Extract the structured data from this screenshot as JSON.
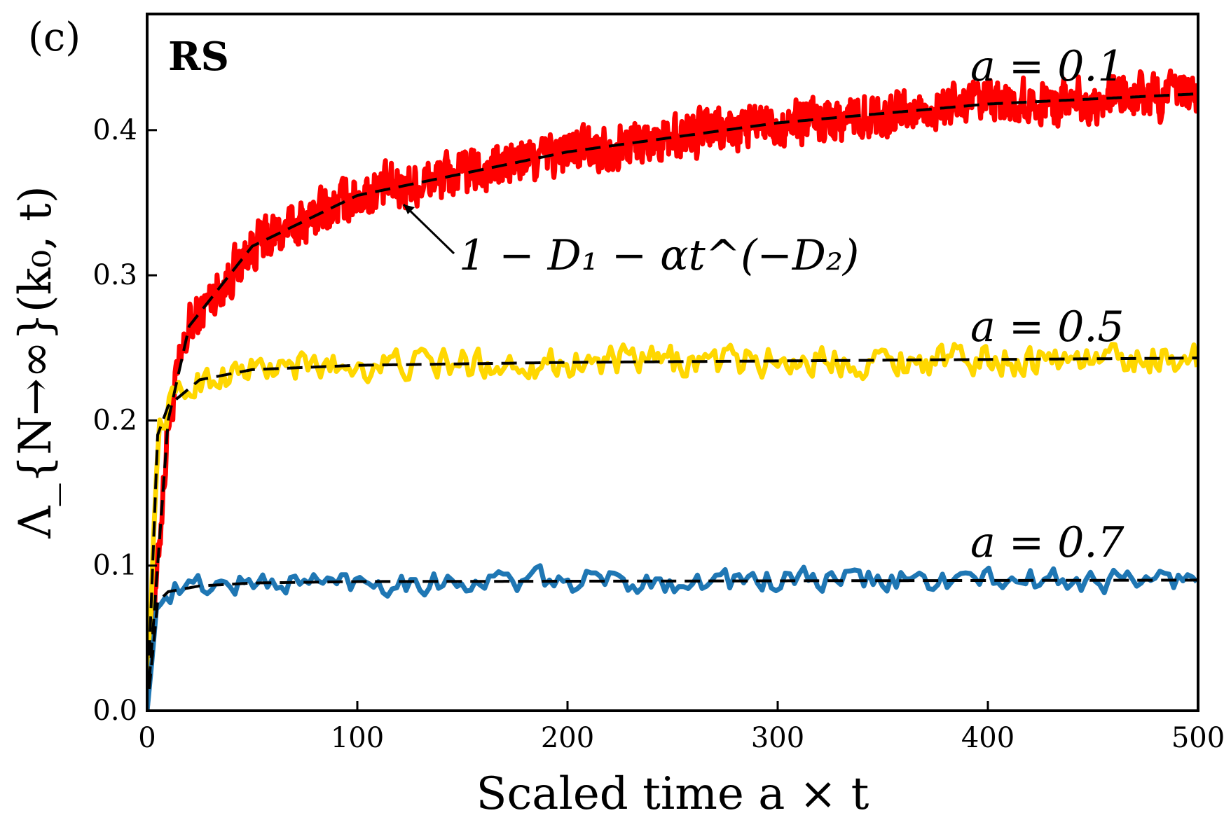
{
  "chart_data": {
    "type": "line",
    "panel_label": "(c)",
    "title": "RS",
    "xlabel": "Scaled time a × t",
    "ylabel": "Λ_{N→∞}(k₀, t)",
    "xlim": [
      0,
      500
    ],
    "ylim": [
      0.0,
      0.48
    ],
    "xticks": [
      0,
      100,
      200,
      300,
      400,
      500
    ],
    "xtick_labels": [
      "0",
      "100",
      "200",
      "300",
      "400",
      "500"
    ],
    "yticks": [
      0.0,
      0.1,
      0.2,
      0.3,
      0.4
    ],
    "ytick_labels": [
      "0.0",
      "0.1",
      "0.2",
      "0.3",
      "0.4"
    ],
    "grid": false,
    "series": [
      {
        "name": "a = 0.1",
        "label": "a = 0.1",
        "color": "#ff0000",
        "noise_amplitude": 0.022,
        "noise_step": 0.35,
        "fit": {
          "form": "power",
          "D1": 0.5,
          "alpha": 0.34,
          "D2": 0.4,
          "t0": 0
        },
        "anchor_points": [
          [
            0,
            0.0
          ],
          [
            10,
            0.2
          ],
          [
            20,
            0.265
          ],
          [
            50,
            0.32
          ],
          [
            100,
            0.355
          ],
          [
            200,
            0.385
          ],
          [
            300,
            0.405
          ],
          [
            400,
            0.418
          ],
          [
            500,
            0.425
          ]
        ]
      },
      {
        "name": "a = 0.5",
        "label": "a = 0.5",
        "color": "#ffd700",
        "noise_amplitude": 0.015,
        "noise_step": 1.5,
        "fit": {
          "form": "saturating",
          "plateau": 0.243
        },
        "anchor_points": [
          [
            0,
            0.0
          ],
          [
            5,
            0.19
          ],
          [
            10,
            0.21
          ],
          [
            25,
            0.228
          ],
          [
            50,
            0.235
          ],
          [
            100,
            0.238
          ],
          [
            200,
            0.24
          ],
          [
            300,
            0.241
          ],
          [
            500,
            0.243
          ]
        ]
      },
      {
        "name": "a = 0.7",
        "label": "a = 0.7",
        "color": "#1f77b4",
        "noise_amplitude": 0.012,
        "noise_step": 2.2,
        "fit": {
          "form": "saturating",
          "plateau": 0.09
        },
        "anchor_points": [
          [
            0,
            0.0
          ],
          [
            5,
            0.075
          ],
          [
            10,
            0.082
          ],
          [
            25,
            0.086
          ],
          [
            50,
            0.088
          ],
          [
            100,
            0.089
          ],
          [
            500,
            0.09
          ]
        ]
      }
    ],
    "fit_label": "1 − D₁ − αt^(−D₂)",
    "fit_annotation_target": {
      "x": 120,
      "y": 0.36
    },
    "fit_line_color": "#000000",
    "fit_line_style": "dashed"
  }
}
